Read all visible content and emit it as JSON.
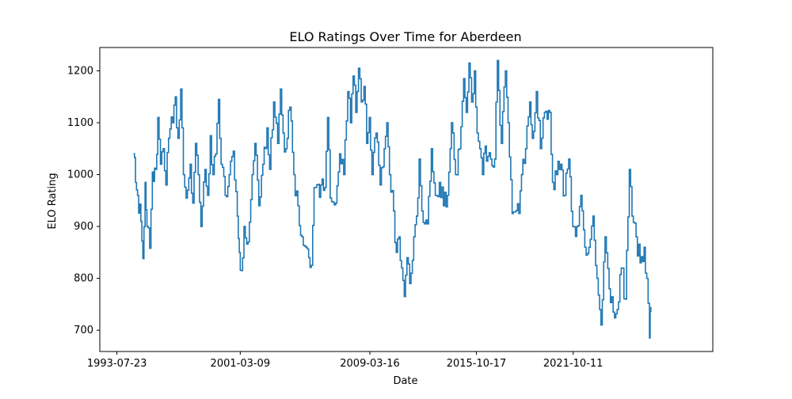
{
  "chart_data": {
    "type": "line",
    "title": "ELO Ratings Over Time for Aberdeen",
    "xlabel": "Date",
    "ylabel": "ELO Rating",
    "x_tick_labels": [
      "1993-07-23",
      "2001-03-09",
      "2009-03-16",
      "2015-10-17",
      "2021-10-11"
    ],
    "y_tick_labels": [
      "700",
      "800",
      "900",
      "1000",
      "1100",
      "1200"
    ],
    "y_ticks": [
      700,
      800,
      900,
      1000,
      1100,
      1200
    ],
    "xlim": [
      "1992-07-01",
      "2030-06-01"
    ],
    "ylim": [
      659,
      1245
    ],
    "grid": false,
    "legend": "none",
    "colors": {
      "line": "#1f77b4"
    },
    "series": [
      {
        "points": [
          [
            "1994-08-01",
            1040
          ],
          [
            "1994-09-15",
            985
          ],
          [
            "1994-11-01",
            960
          ],
          [
            "1995-01-15",
            910
          ],
          [
            "1995-03-01",
            838
          ],
          [
            "1995-04-20",
            985
          ],
          [
            "1995-06-01",
            900
          ],
          [
            "1995-08-01",
            858
          ],
          [
            "1995-10-01",
            1005
          ],
          [
            "1995-12-15",
            1010
          ],
          [
            "1996-02-01",
            1110
          ],
          [
            "1996-04-01",
            1020
          ],
          [
            "1996-06-01",
            1050
          ],
          [
            "1996-08-01",
            980
          ],
          [
            "1996-10-01",
            1070
          ],
          [
            "1997-01-01",
            1100
          ],
          [
            "1997-03-01",
            1150
          ],
          [
            "1997-05-01",
            1070
          ],
          [
            "1997-07-01",
            1165
          ],
          [
            "1997-09-01",
            1000
          ],
          [
            "1997-11-01",
            955
          ],
          [
            "1998-02-01",
            1020
          ],
          [
            "1998-04-01",
            945
          ],
          [
            "1998-06-01",
            1060
          ],
          [
            "1998-08-01",
            1000
          ],
          [
            "1998-10-01",
            900
          ],
          [
            "1999-01-01",
            1010
          ],
          [
            "1999-03-01",
            960
          ],
          [
            "1999-05-01",
            1075
          ],
          [
            "1999-07-01",
            1000
          ],
          [
            "1999-09-01",
            1040
          ],
          [
            "1999-11-01",
            1145
          ],
          [
            "2000-01-01",
            1020
          ],
          [
            "2000-04-01",
            960
          ],
          [
            "2000-07-01",
            1000
          ],
          [
            "2000-10-01",
            1045
          ],
          [
            "2001-01-01",
            920
          ],
          [
            "2001-02-15",
            850
          ],
          [
            "2001-04-01",
            815
          ],
          [
            "2001-06-01",
            900
          ],
          [
            "2001-09-01",
            870
          ],
          [
            "2001-12-01",
            1000
          ],
          [
            "2002-02-01",
            1060
          ],
          [
            "2002-05-01",
            940
          ],
          [
            "2002-08-01",
            1020
          ],
          [
            "2002-11-01",
            1090
          ],
          [
            "2003-01-01",
            1010
          ],
          [
            "2003-04-01",
            1140
          ],
          [
            "2003-07-01",
            1060
          ],
          [
            "2003-09-01",
            1165
          ],
          [
            "2003-11-01",
            1080
          ],
          [
            "2004-01-01",
            1050
          ],
          [
            "2004-04-01",
            1130
          ],
          [
            "2004-07-01",
            1000
          ],
          [
            "2004-10-01",
            940
          ],
          [
            "2005-01-01",
            880
          ],
          [
            "2005-04-01",
            860
          ],
          [
            "2005-06-01",
            840
          ],
          [
            "2005-08-01",
            825
          ],
          [
            "2005-10-01",
            975
          ],
          [
            "2006-06-01",
            975
          ],
          [
            "2006-08-01",
            1110
          ],
          [
            "2006-10-01",
            955
          ],
          [
            "2007-02-01",
            945
          ],
          [
            "2007-05-01",
            1040
          ],
          [
            "2007-08-01",
            1000
          ],
          [
            "2007-11-01",
            1160
          ],
          [
            "2008-01-01",
            1100
          ],
          [
            "2008-03-01",
            1190
          ],
          [
            "2008-05-01",
            1120
          ],
          [
            "2008-07-01",
            1205
          ],
          [
            "2008-09-01",
            1140
          ],
          [
            "2008-11-01",
            1170
          ],
          [
            "2009-01-01",
            1060
          ],
          [
            "2009-03-01",
            1110
          ],
          [
            "2009-05-01",
            1000
          ],
          [
            "2009-08-01",
            1080
          ],
          [
            "2009-11-01",
            980
          ],
          [
            "2010-02-01",
            1050
          ],
          [
            "2010-04-01",
            1100
          ],
          [
            "2010-06-01",
            1000
          ],
          [
            "2010-09-01",
            930
          ],
          [
            "2010-11-01",
            850
          ],
          [
            "2011-01-01",
            880
          ],
          [
            "2011-03-01",
            820
          ],
          [
            "2011-05-01",
            765
          ],
          [
            "2011-07-01",
            840
          ],
          [
            "2011-09-01",
            790
          ],
          [
            "2011-12-01",
            880
          ],
          [
            "2012-02-01",
            920
          ],
          [
            "2012-04-01",
            1030
          ],
          [
            "2012-06-01",
            930
          ],
          [
            "2012-08-01",
            905
          ],
          [
            "2012-10-01",
            905
          ],
          [
            "2013-01-01",
            1050
          ],
          [
            "2013-04-01",
            960
          ],
          [
            "2013-07-01",
            985
          ],
          [
            "2013-10-01",
            940
          ],
          [
            "2014-01-01",
            960
          ],
          [
            "2014-04-01",
            1100
          ],
          [
            "2014-07-01",
            1000
          ],
          [
            "2014-10-01",
            1050
          ],
          [
            "2015-01-01",
            1185
          ],
          [
            "2015-03-01",
            1120
          ],
          [
            "2015-05-01",
            1215
          ],
          [
            "2015-07-01",
            1140
          ],
          [
            "2015-09-01",
            1200
          ],
          [
            "2015-11-01",
            1080
          ],
          [
            "2016-01-01",
            1050
          ],
          [
            "2016-03-01",
            1000
          ],
          [
            "2016-05-01",
            1055
          ],
          [
            "2016-07-01",
            1035
          ],
          [
            "2016-09-01",
            1030
          ],
          [
            "2016-12-01",
            1030
          ],
          [
            "2017-02-01",
            1220
          ],
          [
            "2017-05-01",
            1060
          ],
          [
            "2017-08-01",
            1200
          ],
          [
            "2017-10-01",
            1100
          ],
          [
            "2018-01-01",
            925
          ],
          [
            "2018-06-01",
            925
          ],
          [
            "2018-08-01",
            1000
          ],
          [
            "2018-11-01",
            1050
          ],
          [
            "2019-02-01",
            1140
          ],
          [
            "2019-04-01",
            1070
          ],
          [
            "2019-07-01",
            1160
          ],
          [
            "2019-10-01",
            1050
          ],
          [
            "2020-01-01",
            1120
          ],
          [
            "2020-05-01",
            1120
          ],
          [
            "2020-07-01",
            985
          ],
          [
            "2020-10-01",
            1000
          ],
          [
            "2021-01-01",
            1020
          ],
          [
            "2021-04-01",
            960
          ],
          [
            "2021-07-01",
            1030
          ],
          [
            "2021-10-01",
            900
          ],
          [
            "2022-01-01",
            900
          ],
          [
            "2022-04-01",
            960
          ],
          [
            "2022-07-01",
            860
          ],
          [
            "2022-10-01",
            860
          ],
          [
            "2023-01-01",
            920
          ],
          [
            "2023-04-01",
            800
          ],
          [
            "2023-07-01",
            710
          ],
          [
            "2023-10-01",
            880
          ],
          [
            "2024-01-01",
            780
          ],
          [
            "2024-04-01",
            735
          ],
          [
            "2024-07-01",
            740
          ],
          [
            "2024-10-01",
            820
          ],
          [
            "2025-01-01",
            760
          ],
          [
            "2025-04-01",
            1010
          ],
          [
            "2025-06-01",
            920
          ],
          [
            "2025-09-01",
            880
          ],
          [
            "2025-12-01",
            830
          ],
          [
            "2026-03-01",
            860
          ],
          [
            "2026-05-01",
            800
          ],
          [
            "2026-07-01",
            685
          ],
          [
            "2026-08-01",
            745
          ]
        ]
      }
    ]
  }
}
